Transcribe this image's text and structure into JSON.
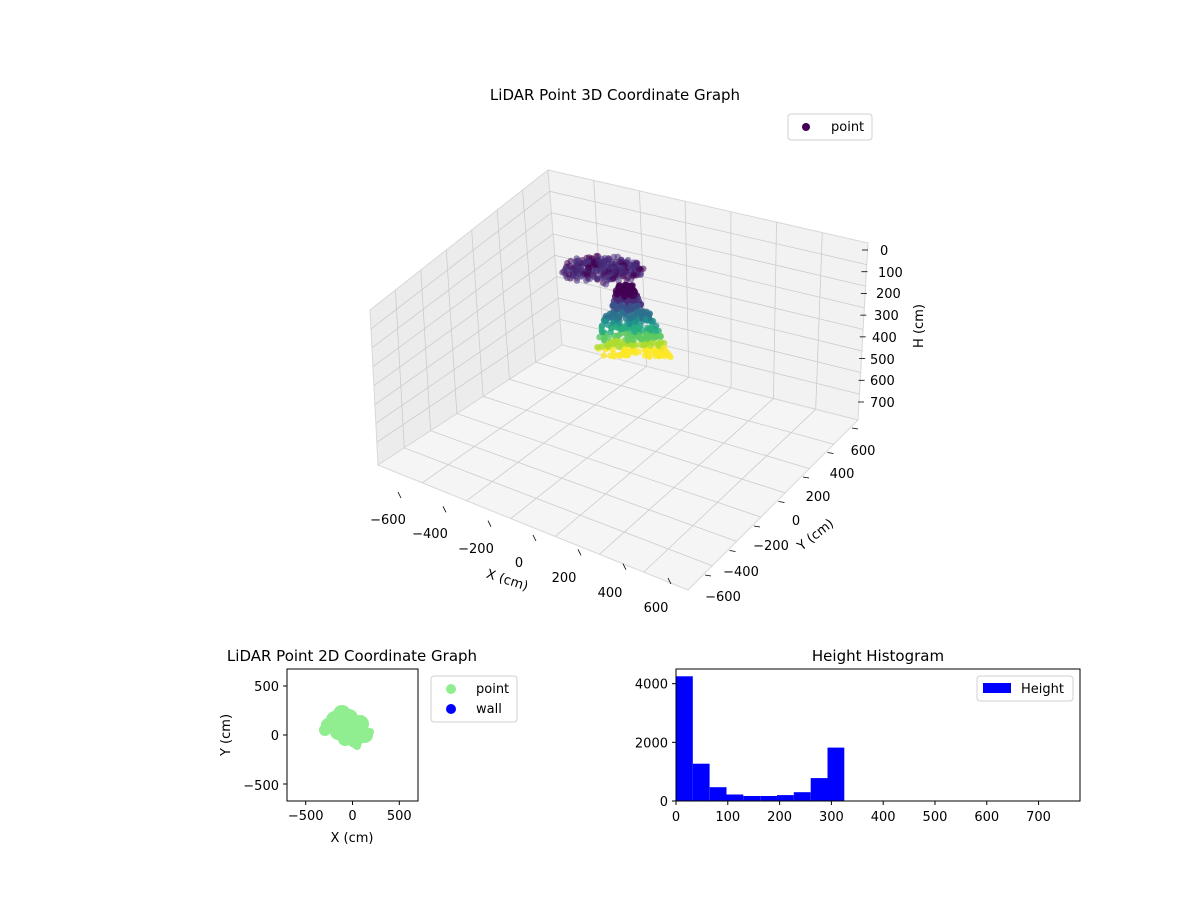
{
  "colors": {
    "viridis": [
      "#440154",
      "#472d7b",
      "#3b528b",
      "#2c728e",
      "#21918c",
      "#28ae80",
      "#5ec962",
      "#addc30",
      "#fde725"
    ],
    "point2d": "#90ee90",
    "wall": "#0000ff",
    "histogram": "#0000ff",
    "grid": "#cccccc"
  },
  "chart_data": [
    {
      "type": "scatter",
      "projection": "3d",
      "title": "LiDAR Point 3D Coordinate Graph",
      "xlabel": "X (cm)",
      "ylabel": "Y (cm)",
      "zlabel": "H (cm)",
      "xlim": [
        -700,
        700
      ],
      "ylim": [
        -700,
        700
      ],
      "zlim": [
        0,
        780
      ],
      "z_inverted": true,
      "xticks": [
        "−600",
        "−400",
        "−200",
        "0",
        "200",
        "400",
        "600"
      ],
      "yticks": [
        "−600",
        "−400",
        "−200",
        "0",
        "200",
        "400",
        "600"
      ],
      "zticks": [
        "0",
        "100",
        "200",
        "300",
        "400",
        "500",
        "600",
        "700"
      ],
      "colormap": "viridis",
      "legend": [
        "point"
      ],
      "legend_position": "top-right",
      "grid": true
    },
    {
      "type": "scatter",
      "title": "LiDAR Point 2D Coordinate Graph",
      "xlabel": "X (cm)",
      "ylabel": "Y (cm)",
      "xlim": [
        -700,
        700
      ],
      "ylim": [
        -700,
        700
      ],
      "xticks": [
        "−500",
        "0",
        "500"
      ],
      "yticks": [
        "−500",
        "0",
        "500"
      ],
      "series": [
        {
          "name": "point",
          "color": "#90ee90"
        },
        {
          "name": "wall",
          "color": "#0000ff"
        }
      ],
      "legend_position": "outside right",
      "grid": false
    },
    {
      "type": "bar",
      "title": "Height Histogram",
      "xlabel": "",
      "ylabel": "",
      "xlim": [
        0,
        780
      ],
      "ylim": [
        0,
        4500
      ],
      "xticks": [
        "0",
        "100",
        "200",
        "300",
        "400",
        "500",
        "600",
        "700"
      ],
      "yticks": [
        "0",
        "2000",
        "4000"
      ],
      "bin_edges": [
        0,
        32.5,
        65,
        97.5,
        130,
        162.5,
        195,
        227.5,
        260,
        292.5,
        325
      ],
      "series": [
        {
          "name": "Height",
          "values": [
            4250,
            1270,
            470,
            220,
            170,
            170,
            200,
            300,
            780,
            1820
          ]
        }
      ],
      "legend_position": "top-right",
      "grid": false
    }
  ]
}
